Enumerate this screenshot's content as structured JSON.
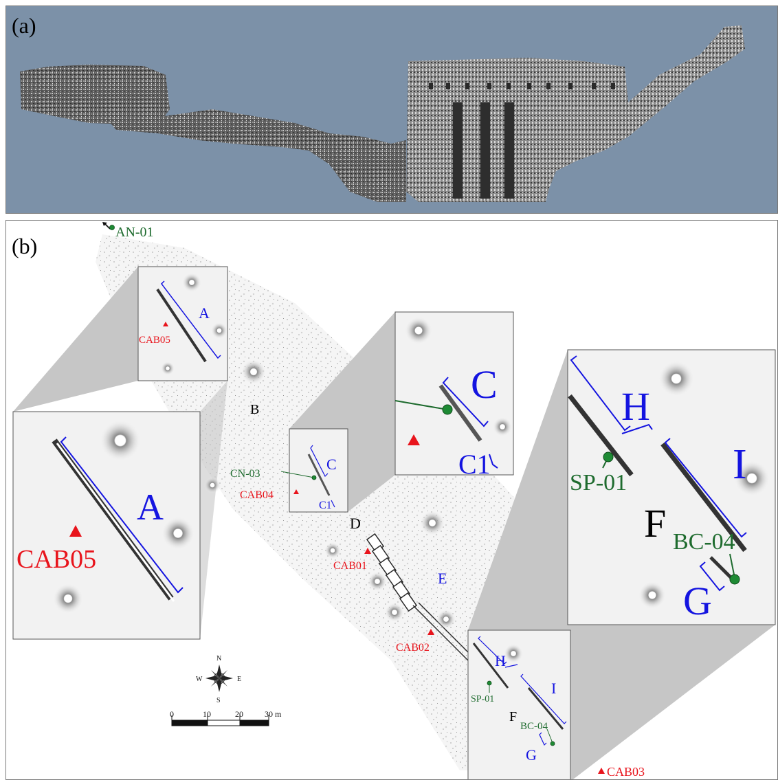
{
  "panel_a": {
    "label": "(a)"
  },
  "panel_b": {
    "label": "(b)",
    "colors": {
      "marker_red": "#e8141c",
      "label_green": "#1e6b2e",
      "bracket_blue": "#1414e0",
      "shade": "#c8c8c8"
    },
    "points": {
      "an01": "AN-01",
      "cn03": "CN-03",
      "sp01": "SP-01",
      "bc04": "BC-04",
      "cab05": "CAB05",
      "cab04": "CAB04",
      "cab01": "CAB01",
      "cab02": "CAB02",
      "cab03": "CAB03"
    },
    "sections": {
      "a": "A",
      "b": "B",
      "c": "C",
      "c1": "C1",
      "d": "D",
      "e": "E",
      "f": "F",
      "g": "G",
      "h": "H",
      "i": "I"
    },
    "compass": {
      "n": "N",
      "s": "S",
      "e": "E",
      "w": "W",
      "icon": "compass-rose-icon"
    },
    "scale": {
      "ticks": [
        "0",
        "10",
        "20",
        "30 m"
      ]
    }
  }
}
